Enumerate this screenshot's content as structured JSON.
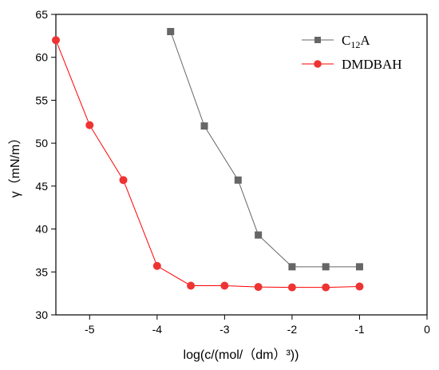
{
  "chart_data": {
    "type": "line",
    "xlabel": "log(c/(mol/（dm）³))",
    "ylabel": "γ（mN/m）",
    "xlim": [
      -5.5,
      0
    ],
    "ylim": [
      30,
      65
    ],
    "x_ticks": [
      -5,
      -4,
      -3,
      -2,
      -1,
      0
    ],
    "y_ticks": [
      30,
      35,
      40,
      45,
      50,
      55,
      60,
      65
    ],
    "grid": false,
    "legend_position": "top-right",
    "series": [
      {
        "name": "C12A",
        "name_main": "C",
        "name_sub": "12",
        "name_tail": "A",
        "color": "#666666",
        "marker": "square",
        "points": [
          [
            -3.8,
            63.0
          ],
          [
            -3.3,
            52.0
          ],
          [
            -2.8,
            45.7
          ],
          [
            -2.5,
            39.3
          ],
          [
            -2.0,
            35.6
          ],
          [
            -1.5,
            35.6
          ],
          [
            -1.0,
            35.6
          ]
        ]
      },
      {
        "name": "DMDBAH",
        "color": "#ff0000",
        "marker_color": "#ee3333",
        "marker": "circle",
        "points": [
          [
            -5.5,
            62.0
          ],
          [
            -5.0,
            52.1
          ],
          [
            -4.5,
            45.7
          ],
          [
            -4.0,
            35.7
          ],
          [
            -3.5,
            33.4
          ],
          [
            -3.0,
            33.4
          ],
          [
            -2.5,
            33.25
          ],
          [
            -2.0,
            33.2
          ],
          [
            -1.5,
            33.2
          ],
          [
            -1.0,
            33.3
          ]
        ]
      }
    ]
  }
}
